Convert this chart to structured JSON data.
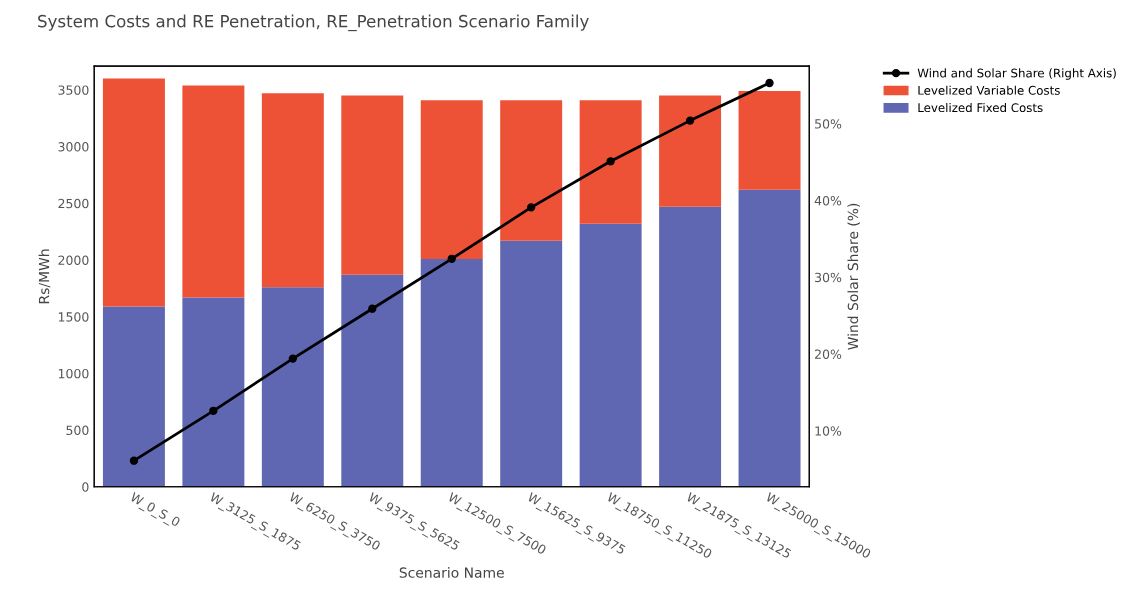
{
  "chart_data": {
    "type": "bar",
    "title": "System Costs and RE Penetration, RE_Penetration Scenario Family",
    "xlabel": "Scenario Name",
    "ylabel": "Rs/MWh",
    "y2label": "Wind Solar Share (%)",
    "categories": [
      "W_0_S_0",
      "W_3125_S_1875",
      "W_6250_S_3750",
      "W_9375_S_5625",
      "W_12500_S_7500",
      "W_15625_S_9375",
      "W_18750_S_11250",
      "W_21875_S_13125",
      "W_25000_S_15000"
    ],
    "stacked": true,
    "series": [
      {
        "name": "Levelized Fixed Costs",
        "color": "#5f67b3",
        "values": [
          1590,
          1670,
          1760,
          1870,
          2010,
          2170,
          2320,
          2470,
          2620
        ]
      },
      {
        "name": "Levelized Variable Costs",
        "color": "#ee5236",
        "values": [
          2010,
          1870,
          1710,
          1580,
          1400,
          1240,
          1090,
          980,
          870
        ]
      },
      {
        "name": "Wind and Solar Share (Right Axis)",
        "type": "line",
        "axis": "y2",
        "color": "#000000",
        "marker": "circle",
        "values": [
          6.1,
          12.6,
          19.4,
          25.9,
          32.4,
          39.1,
          45.1,
          50.4,
          55.3
        ]
      }
    ],
    "ylim": [
      0,
      3710
    ],
    "yticks": [
      0,
      500,
      1000,
      1500,
      2000,
      2500,
      3000,
      3500
    ],
    "y2lim": [
      2.7,
      57.5
    ],
    "y2ticks": [
      {
        "value": 10,
        "label": "10%"
      },
      {
        "value": 20,
        "label": "20%"
      },
      {
        "value": 30,
        "label": "30%"
      },
      {
        "value": 40,
        "label": "40%"
      },
      {
        "value": 50,
        "label": "50%"
      }
    ],
    "grid": false,
    "legend": "top right"
  }
}
